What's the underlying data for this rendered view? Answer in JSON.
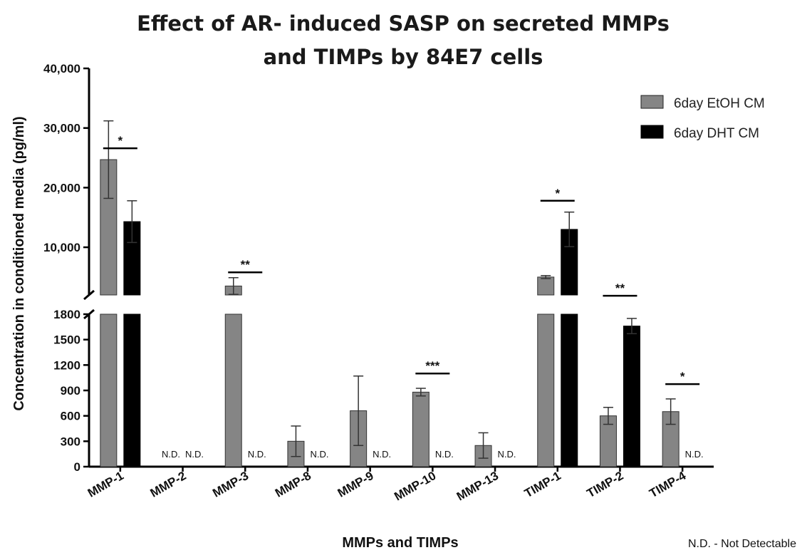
{
  "chart_data": {
    "type": "bar",
    "title_line1": "Effect of AR- induced SASP on secreted MMPs",
    "title_line2": "and TIMPs by 84E7 cells",
    "xlabel": "MMPs and TIMPs",
    "ylabel": "Concentration in conditioned media (pg/ml)",
    "categories": [
      "MMP-1",
      "MMP-2",
      "MMP-3",
      "MMP-8",
      "MMP-9",
      "MMP-10",
      "MMP-13",
      "TIMP-1",
      "TIMP-2",
      "TIMP-4"
    ],
    "y_axis_segments": [
      {
        "range": [
          0,
          1800
        ],
        "ticks": [
          0,
          300,
          600,
          900,
          1200,
          1500,
          1800
        ],
        "tick_labels": [
          "0",
          "300",
          "600",
          "900",
          "1200",
          "1500",
          "1800"
        ]
      },
      {
        "range": [
          2000,
          40000
        ],
        "ticks": [
          10000,
          20000,
          30000,
          40000
        ],
        "tick_labels": [
          "10,000",
          "20,000",
          "30,000",
          "40,000"
        ]
      }
    ],
    "series": [
      {
        "name": "6day EtOH CM",
        "color": "#858585",
        "values": [
          24700,
          null,
          3500,
          300,
          660,
          880,
          250,
          5000,
          600,
          650
        ],
        "errors": [
          6500,
          null,
          1400,
          180,
          410,
          45,
          150,
          250,
          100,
          150
        ],
        "labels": [
          "",
          "N.D.",
          "",
          "",
          "",
          "",
          "",
          "",
          "",
          ""
        ]
      },
      {
        "name": "6day DHT CM",
        "color": "#000000",
        "values": [
          14300,
          null,
          null,
          null,
          null,
          null,
          null,
          13000,
          1660,
          null
        ],
        "errors": [
          3500,
          null,
          null,
          null,
          null,
          null,
          null,
          2900,
          90,
          null
        ],
        "labels": [
          "",
          "N.D.",
          "N.D.",
          "N.D.",
          "N.D.",
          "N.D.",
          "N.D.",
          "",
          "",
          "N.D."
        ]
      }
    ],
    "significance": [
      {
        "index": 0,
        "label": "*",
        "y": 26600
      },
      {
        "index": 2,
        "label": "**",
        "y": 5800
      },
      {
        "index": 5,
        "label": "***",
        "y": 1100
      },
      {
        "index": 7,
        "label": "*",
        "y": 17800
      },
      {
        "index": 8,
        "label": "**",
        "y": 1870
      },
      {
        "index": 9,
        "label": "*",
        "y": 975
      }
    ],
    "legend_position": "top-right",
    "footnote": "N.D. - Not Detectable"
  }
}
